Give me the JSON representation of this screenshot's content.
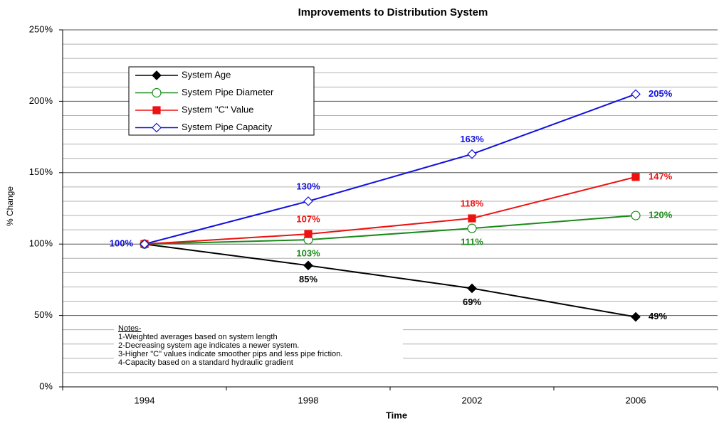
{
  "chart_data": {
    "type": "line",
    "title": "Improvements to Distribution System",
    "xlabel": "Time",
    "ylabel": "% Change",
    "categories": [
      "1994",
      "1998",
      "2002",
      "2006"
    ],
    "series": [
      {
        "name": "System Age",
        "color": "#000000",
        "marker": "diamond-filled",
        "values": [
          100,
          85,
          69,
          49
        ],
        "value_labels": [
          null,
          "85%",
          "69%",
          "49%"
        ]
      },
      {
        "name": "System Pipe Diameter",
        "color": "#1a8a1a",
        "marker": "circle-open",
        "values": [
          100,
          103,
          111,
          120
        ],
        "value_labels": [
          null,
          "103%",
          "111%",
          "120%"
        ]
      },
      {
        "name": "System \"C\" Value",
        "color": "#ee1111",
        "marker": "square-filled",
        "values": [
          100,
          107,
          118,
          147
        ],
        "value_labels": [
          null,
          "107%",
          "118%",
          "147%"
        ]
      },
      {
        "name": "System Pipe Capacity",
        "color": "#1111dd",
        "marker": "diamond-open",
        "values": [
          100,
          130,
          163,
          205
        ],
        "value_labels": [
          "100%",
          "130%",
          "163%",
          "205%"
        ]
      }
    ],
    "ylim": [
      0,
      250
    ],
    "yticks": [
      {
        "value": 0,
        "label": "0%"
      },
      {
        "value": 50,
        "label": "50%"
      },
      {
        "value": 100,
        "label": "100%"
      },
      {
        "value": 150,
        "label": "150%"
      },
      {
        "value": 200,
        "label": "200%"
      },
      {
        "value": 250,
        "label": "250%"
      }
    ],
    "minor_yticks": [
      10,
      20,
      30,
      40,
      60,
      70,
      80,
      90,
      110,
      120,
      130,
      140,
      160,
      170,
      180,
      190,
      210,
      220,
      230,
      240
    ],
    "grid": true,
    "legend": "upper left",
    "notes": {
      "title": "Notes-",
      "lines": [
        "1-Weighted averages based on system length",
        "2-Decreasing system age indicates a newer system.",
        "3-Higher \"C\" values indicate smoother pips and less pipe friction.",
        "4-Capacity based on a standard hydraulic gradient"
      ]
    }
  }
}
